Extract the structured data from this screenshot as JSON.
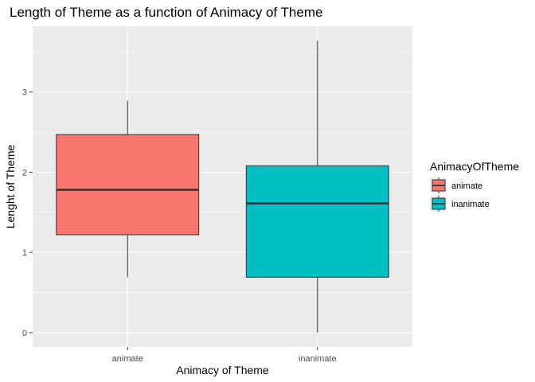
{
  "chart_data": {
    "type": "boxplot",
    "title": "Length of Theme as a function of Animacy of Theme",
    "xlabel": "Animacy of Theme",
    "ylabel": "Lenght of Theme",
    "categories": [
      "animate",
      "inanimate"
    ],
    "ylim": [
      -0.18,
      3.82
    ],
    "yticks": [
      "0",
      "1",
      "2",
      "3"
    ],
    "grid": true,
    "legend": {
      "title": "AnimacyOfTheme",
      "position": "right",
      "entries": [
        "animate",
        "inanimate"
      ]
    },
    "colors": [
      "#F8766D",
      "#00BFC4"
    ],
    "boxes": [
      {
        "category": "animate",
        "min": 0.69,
        "q1": 1.22,
        "median": 1.78,
        "q3": 2.47,
        "max": 2.89
      },
      {
        "category": "inanimate",
        "min": 0.0,
        "q1": 0.69,
        "median": 1.61,
        "q3": 2.08,
        "max": 3.64
      }
    ]
  }
}
